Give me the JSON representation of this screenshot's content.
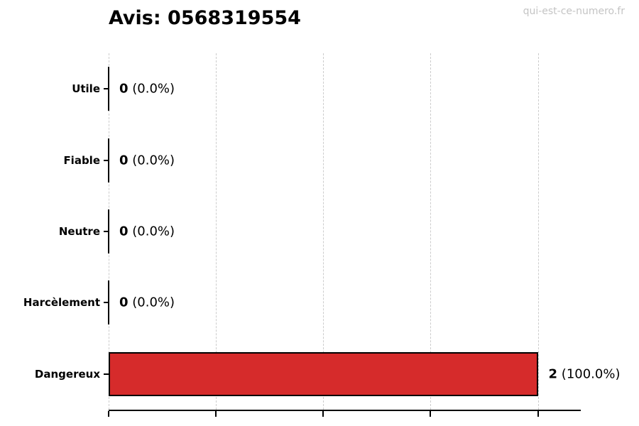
{
  "header": {
    "title": "Avis: 0568319554",
    "watermark": "qui-est-ce-numero.fr"
  },
  "chart_data": {
    "type": "bar",
    "orientation": "horizontal",
    "title": "Avis: 0568319554",
    "categories": [
      "Utile",
      "Fiable",
      "Neutre",
      "Harcèlement",
      "Dangereux"
    ],
    "values": [
      0,
      0,
      0,
      0,
      2
    ],
    "annotations": [
      {
        "count": "0",
        "percent": "(0.0%)"
      },
      {
        "count": "0",
        "percent": "(0.0%)"
      },
      {
        "count": "0",
        "percent": "(0.0%)"
      },
      {
        "count": "0",
        "percent": "(0.0%)"
      },
      {
        "count": "2",
        "percent": "(100.0%)"
      }
    ],
    "xlim": [
      0,
      2.2
    ],
    "xticks": [
      0,
      0.5,
      1,
      1.5,
      2
    ],
    "grid": "vertical-dashed",
    "legend": "none",
    "colors": {
      "bar_fill": "#d62b2b",
      "bar_edge": "#000000",
      "gridline": "#cccccc",
      "axis": "#000000",
      "watermark": "#c4c4c4",
      "text": "#000000"
    }
  }
}
